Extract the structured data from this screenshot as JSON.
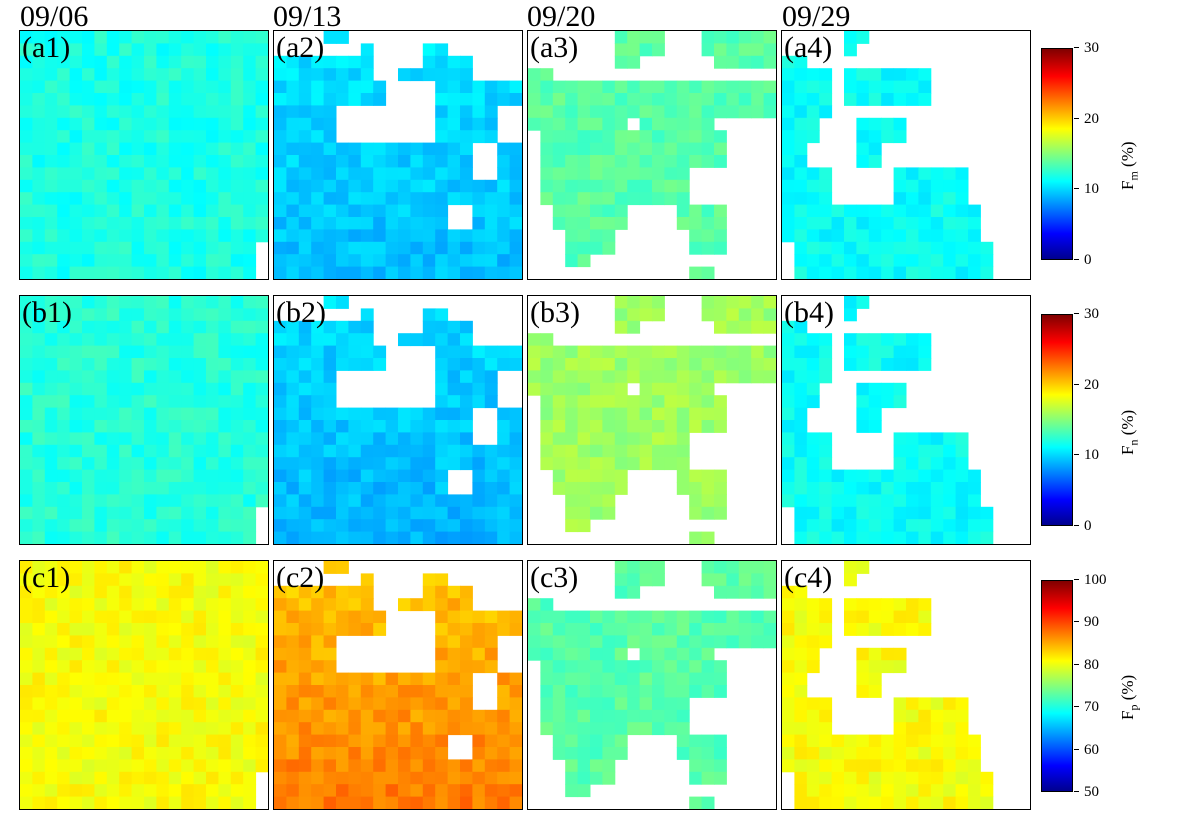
{
  "dates": [
    "09/06",
    "09/13",
    "09/20",
    "09/29"
  ],
  "rows": [
    {
      "labels": [
        "(a1)",
        "(a2)",
        "(a3)",
        "(a4)"
      ],
      "variable": "F",
      "subscript": "m",
      "unit": "(%)"
    },
    {
      "labels": [
        "(b1)",
        "(b2)",
        "(b3)",
        "(b4)"
      ],
      "variable": "F",
      "subscript": "n",
      "unit": "(%)"
    },
    {
      "labels": [
        "(c1)",
        "(c2)",
        "(c3)",
        "(c4)"
      ],
      "variable": "F",
      "subscript": "p",
      "unit": "(%)"
    }
  ],
  "colorbars": [
    {
      "ticks": [
        "30",
        "20",
        "10",
        "0"
      ],
      "range": [
        0,
        30
      ]
    },
    {
      "ticks": [
        "30",
        "20",
        "10",
        "0"
      ],
      "range": [
        0,
        30
      ]
    },
    {
      "ticks": [
        "100",
        "90",
        "80",
        "70",
        "60",
        "50"
      ],
      "range": [
        50,
        100
      ]
    }
  ],
  "chart_data": {
    "type": "heatmap",
    "grid": [
      20,
      20
    ],
    "colormap": "jet",
    "columns": [
      "09/06",
      "09/13",
      "09/20",
      "09/29"
    ],
    "rows": [
      "Fm (%)",
      "Fn (%)",
      "Fp (%)"
    ],
    "ranges": [
      [
        0,
        30
      ],
      [
        0,
        30
      ],
      [
        50,
        100
      ]
    ],
    "masks": {
      "09/06": "all except bottom-right corner",
      "09/13": "lower-left and bottom regions",
      "09/20": "central heart-shaped region",
      "09/29": "left and bottom-right regions"
    },
    "approx_mean_values": {
      "a1": 12,
      "a2": 10,
      "a3": 14,
      "a4": 11,
      "b1": 12,
      "b2": 10,
      "b3": 16,
      "b4": 11,
      "c1": 81,
      "c2": 84,
      "c3": 73,
      "c4": 81
    }
  }
}
